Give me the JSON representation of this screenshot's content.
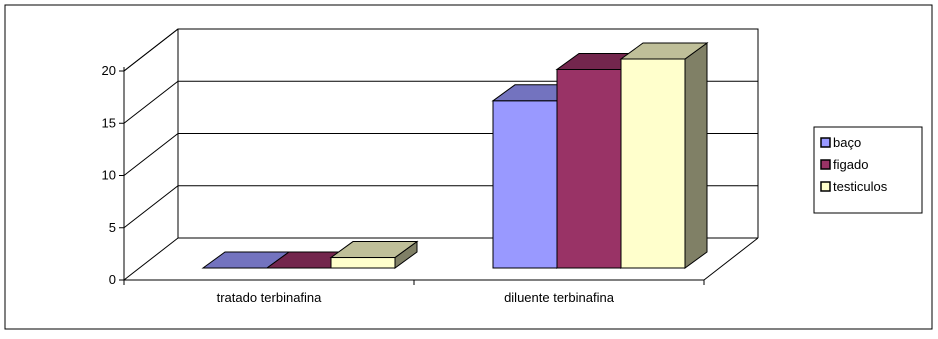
{
  "chart_data": {
    "type": "bar",
    "categories": [
      "tratado terbinafina",
      "diluente terbinafina"
    ],
    "series": [
      {
        "name": "baço",
        "values": [
          0,
          16
        ],
        "color": "#9999ff",
        "side": "#4d4d80",
        "top": "#7373bf"
      },
      {
        "name": "figado",
        "values": [
          0,
          19
        ],
        "color": "#993366",
        "side": "#4d1a33",
        "top": "#73264d"
      },
      {
        "name": "testiculos",
        "values": [
          1,
          20
        ],
        "color": "#ffffcc",
        "side": "#808066",
        "top": "#bfbf99"
      }
    ],
    "yticks": [
      "0",
      "5",
      "10",
      "15",
      "20"
    ],
    "ylim": [
      0,
      20
    ],
    "grid": true,
    "legend_position": "right",
    "title": "",
    "xlabel": "",
    "ylabel": ""
  }
}
